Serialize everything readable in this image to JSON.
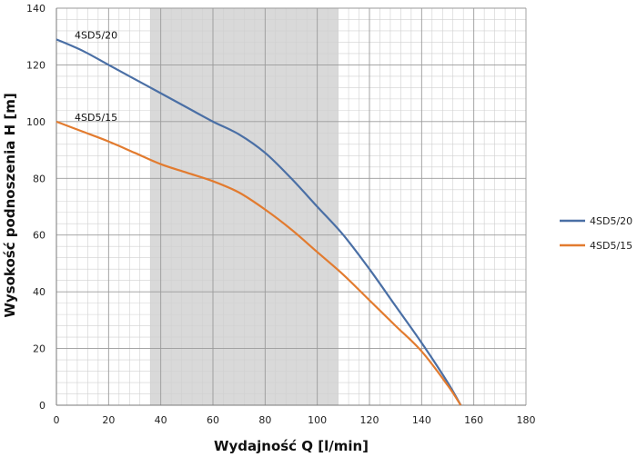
{
  "chart_data": {
    "type": "line",
    "xlabel": "Wydajność Q [l/min]",
    "ylabel": "Wysokość podnoszenia H [m]",
    "xlim": [
      0,
      180
    ],
    "ylim": [
      0,
      140
    ],
    "x_ticks": [
      0,
      20,
      40,
      60,
      80,
      100,
      120,
      140,
      160,
      180
    ],
    "y_ticks": [
      0,
      20,
      40,
      60,
      80,
      100,
      120,
      140
    ],
    "grid": true,
    "minor_grid_step_x": 4,
    "minor_grid_step_y": 4,
    "shaded_range_x": [
      36,
      108
    ],
    "legend_position": "right",
    "series": [
      {
        "name": "4SD5/20",
        "curve_label": "4SD5/20",
        "color": "#4a6fa5",
        "x": [
          0,
          10,
          20,
          30,
          40,
          50,
          60,
          70,
          80,
          90,
          100,
          110,
          120,
          130,
          140,
          150,
          155
        ],
        "y": [
          129,
          125,
          120,
          115,
          110,
          105,
          100,
          95.5,
          89,
          80,
          70,
          60,
          48,
          35,
          22,
          8,
          0
        ]
      },
      {
        "name": "4SD5/15",
        "curve_label": "4SD5/15",
        "color": "#e27b2f",
        "x": [
          0,
          10,
          20,
          30,
          40,
          50,
          60,
          70,
          80,
          90,
          100,
          110,
          120,
          130,
          140,
          150,
          155
        ],
        "y": [
          100,
          96.5,
          93,
          89,
          85,
          82,
          79,
          75,
          69,
          62,
          54,
          46,
          37,
          28,
          19,
          7,
          0
        ]
      }
    ]
  }
}
